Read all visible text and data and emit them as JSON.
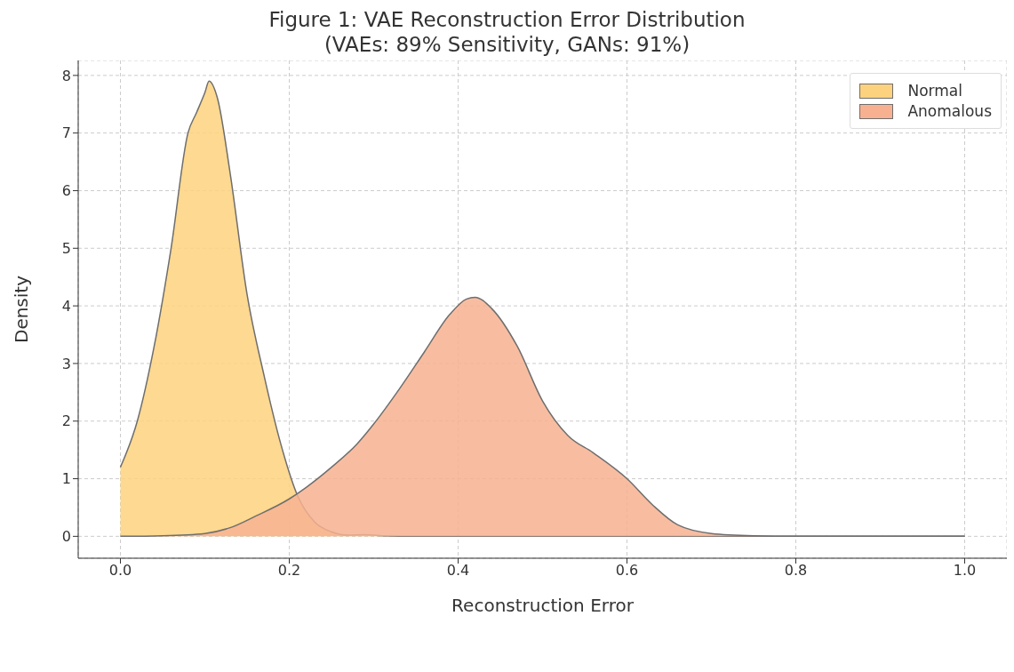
{
  "chart_data": {
    "type": "area",
    "title": "Figure 1: VAE Reconstruction Error Distribution\n(VAEs: 89% Sensitivity, GANs: 91%)",
    "xlabel": "Reconstruction Error",
    "ylabel": "Density",
    "xlim": [
      -0.05,
      1.05
    ],
    "xticks": [
      {
        "value": 0,
        "label": "0.0"
      },
      {
        "value": 0.2,
        "label": "0.2"
      },
      {
        "value": 0.4,
        "label": "0.4"
      },
      {
        "value": 0.6,
        "label": "0.6"
      },
      {
        "value": 0.8,
        "label": "0.8"
      },
      {
        "value": 1,
        "label": "1.0"
      }
    ],
    "ylim": [
      -0.38,
      8.26
    ],
    "yticks": [
      0,
      1,
      2,
      3,
      4,
      5,
      6,
      7,
      8
    ],
    "grid": true,
    "legend": "top right",
    "series": [
      {
        "name": "Normal",
        "color": "#fdd27e",
        "x": [
          0,
          0.02,
          0.04,
          0.06,
          0.08,
          0.09,
          0.1,
          0.105,
          0.115,
          0.13,
          0.15,
          0.17,
          0.19,
          0.21,
          0.23,
          0.25,
          0.27,
          0.29,
          0.31,
          0.35,
          0.5,
          0.7,
          1.0
        ],
        "values": [
          1.2,
          2.0,
          3.3,
          5.0,
          7.0,
          7.35,
          7.7,
          7.9,
          7.6,
          6.3,
          4.2,
          2.8,
          1.6,
          0.7,
          0.25,
          0.08,
          0.02,
          0.03,
          0.01,
          0,
          0,
          0,
          0
        ]
      },
      {
        "name": "Anomalous",
        "color": "#f7b190",
        "x": [
          0,
          0.05,
          0.1,
          0.13,
          0.16,
          0.2,
          0.22,
          0.25,
          0.28,
          0.3,
          0.33,
          0.36,
          0.39,
          0.41,
          0.42,
          0.44,
          0.47,
          0.5,
          0.53,
          0.56,
          0.6,
          0.63,
          0.66,
          0.7,
          0.75,
          0.8,
          1.0
        ],
        "values": [
          0,
          0.01,
          0.05,
          0.15,
          0.35,
          0.65,
          0.85,
          1.2,
          1.6,
          1.95,
          2.55,
          3.2,
          3.85,
          4.12,
          4.15,
          3.95,
          3.3,
          2.35,
          1.75,
          1.45,
          1.0,
          0.55,
          0.2,
          0.05,
          0.01,
          0,
          0
        ]
      }
    ]
  }
}
